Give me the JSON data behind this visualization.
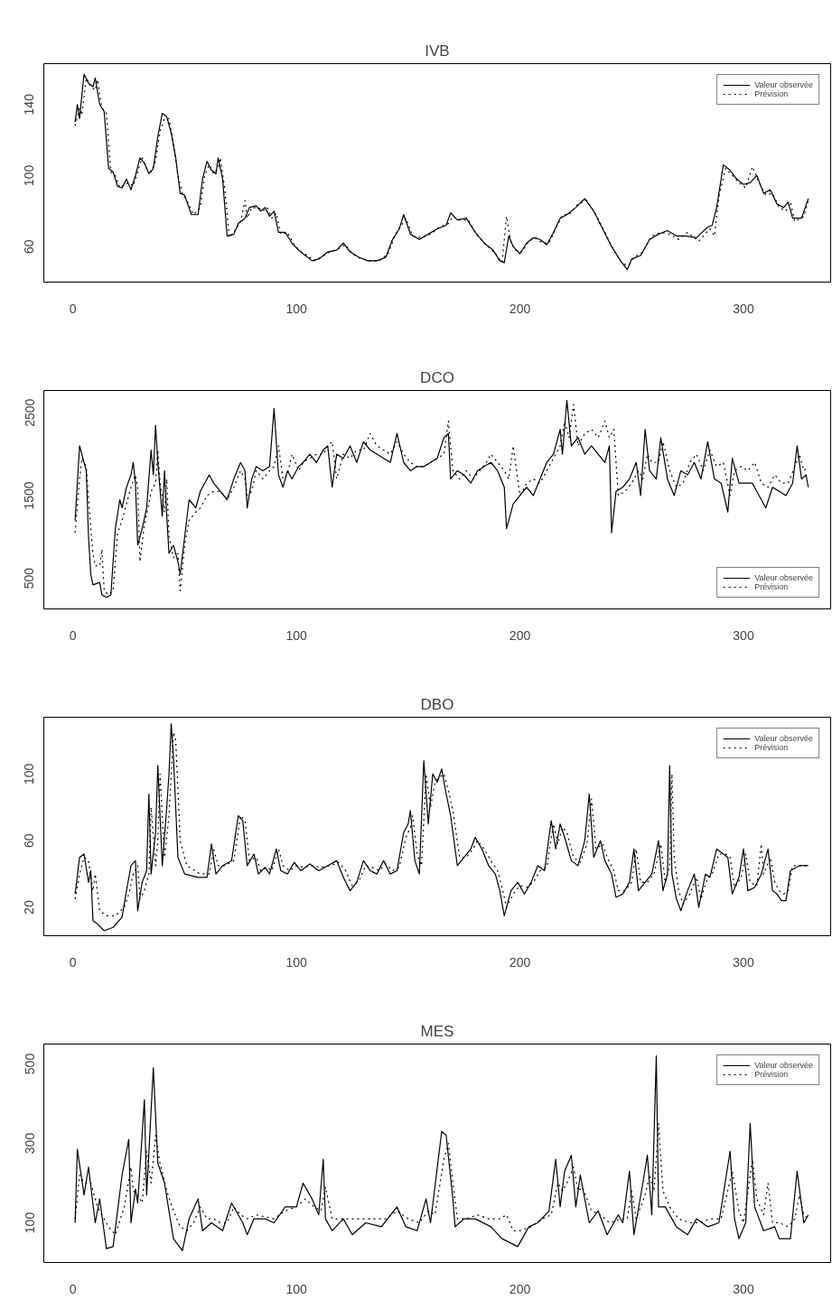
{
  "chart_data": [
    {
      "type": "line",
      "title": "IVB",
      "xlim": [
        -13,
        339
      ],
      "xticks": [
        0,
        100,
        200,
        300
      ],
      "ylim": [
        40,
        163
      ],
      "yticks": [
        60,
        100,
        140
      ],
      "legend": "top right",
      "grid": false,
      "series": [
        {
          "name": "Valeur observée",
          "color": "#000000",
          "line_style": "solid",
          "x": [
            1,
            2,
            3,
            4,
            5,
            7,
            9,
            10,
            12,
            14,
            16,
            18,
            20,
            22,
            24,
            26,
            28,
            30,
            32,
            34,
            36,
            38,
            40,
            42,
            44,
            46,
            48,
            50,
            53,
            56,
            58,
            60,
            62,
            64,
            65,
            67,
            69,
            72,
            74,
            77,
            79,
            82,
            84,
            86,
            88,
            90,
            92,
            95,
            98,
            101,
            104,
            107,
            110,
            114,
            118,
            121,
            124,
            128,
            132,
            136,
            140,
            143,
            146,
            148,
            151,
            155,
            159,
            163,
            167,
            169,
            172,
            176,
            180,
            184,
            188,
            191,
            193,
            195,
            197,
            200,
            203,
            206,
            209,
            212,
            215,
            218,
            221,
            225,
            229,
            233,
            237,
            241,
            245,
            248,
            250,
            254,
            258,
            262,
            266,
            270,
            274,
            279,
            284,
            286,
            288,
            291,
            294,
            297,
            300,
            303,
            306,
            309,
            312,
            315,
            318,
            320,
            322,
            326,
            329
          ],
          "values": [
            130,
            140,
            132,
            145,
            157,
            152,
            150,
            155,
            140,
            136,
            104,
            102,
            94,
            93,
            98,
            92,
            100,
            110,
            107,
            101,
            104,
            122,
            135,
            133,
            124,
            110,
            90,
            89,
            78,
            78,
            98,
            108,
            103,
            101,
            110,
            98,
            66,
            67,
            73,
            76,
            82,
            83,
            80,
            82,
            77,
            80,
            68,
            68,
            62,
            58,
            55,
            52,
            53,
            57,
            58,
            62,
            57,
            54,
            52,
            52,
            54,
            64,
            70,
            78,
            67,
            64,
            67,
            70,
            72,
            79,
            75,
            76,
            68,
            62,
            58,
            52,
            51,
            66,
            60,
            56,
            62,
            65,
            64,
            61,
            68,
            76,
            78,
            82,
            87,
            80,
            70,
            60,
            52,
            47,
            53,
            55,
            64,
            67,
            69,
            66,
            66,
            65,
            71,
            72,
            82,
            106,
            103,
            98,
            95,
            96,
            100,
            90,
            92,
            84,
            82,
            85,
            76,
            76,
            87
          ]
        },
        {
          "name": "Prévision",
          "color": "#000000",
          "line_style": "dotted",
          "x": [
            1,
            3,
            4,
            6,
            8,
            10,
            11,
            13,
            15,
            17,
            19,
            21,
            23,
            25,
            27,
            29,
            31,
            33,
            35,
            37,
            39,
            41,
            43,
            45,
            47,
            49,
            51,
            54,
            57,
            59,
            61,
            63,
            65,
            66,
            68,
            70,
            73,
            75,
            77,
            78,
            80,
            83,
            85,
            87,
            89,
            91,
            93,
            96,
            99,
            102,
            105,
            108,
            111,
            115,
            119,
            122,
            125,
            129,
            133,
            137,
            141,
            144,
            147,
            149,
            152,
            156,
            160,
            164,
            168,
            170,
            173,
            177,
            181,
            185,
            189,
            192,
            194,
            196,
            198,
            201,
            204,
            207,
            210,
            213,
            216,
            219,
            222,
            226,
            230,
            234,
            238,
            242,
            246,
            249,
            251,
            255,
            259,
            263,
            267,
            271,
            275,
            280,
            285,
            287,
            289,
            292,
            295,
            298,
            301,
            304,
            307,
            310,
            313,
            316,
            319,
            321,
            323,
            327,
            329
          ],
          "values": [
            128,
            138,
            134,
            155,
            150,
            148,
            154,
            138,
            135,
            102,
            100,
            93,
            95,
            96,
            94,
            102,
            110,
            104,
            102,
            108,
            125,
            132,
            132,
            118,
            100,
            90,
            86,
            78,
            82,
            100,
            106,
            101,
            104,
            110,
            92,
            65,
            70,
            74,
            86,
            76,
            82,
            82,
            80,
            82,
            76,
            79,
            67,
            68,
            61,
            57,
            55,
            52,
            54,
            57,
            59,
            61,
            56,
            53,
            52,
            52,
            56,
            66,
            72,
            76,
            66,
            65,
            67,
            71,
            73,
            77,
            75,
            75,
            66,
            61,
            56,
            51,
            77,
            62,
            58,
            57,
            63,
            65,
            62,
            62,
            70,
            78,
            78,
            84,
            86,
            78,
            68,
            58,
            50,
            50,
            54,
            57,
            66,
            68,
            67,
            64,
            68,
            63,
            70,
            66,
            88,
            104,
            100,
            96,
            93,
            105,
            96,
            89,
            90,
            82,
            80,
            85,
            74,
            77,
            86
          ]
        }
      ]
    },
    {
      "type": "line",
      "title": "DCO",
      "xlim": [
        -13,
        339
      ],
      "xticks": [
        0,
        100,
        200,
        300
      ],
      "ylim": [
        130,
        2770
      ],
      "yticks": [
        500,
        1500,
        2500
      ],
      "legend": "bottom right",
      "grid": false,
      "series": [
        {
          "name": "Valeur observée",
          "color": "#000000",
          "line_style": "solid",
          "x": [
            1,
            3,
            5,
            6,
            7,
            8,
            9,
            12,
            13,
            15,
            17,
            18,
            19,
            21,
            22,
            24,
            26,
            27,
            28,
            29,
            31,
            33,
            34,
            35,
            36,
            37,
            38,
            40,
            41,
            42,
            43,
            45,
            47,
            48,
            50,
            52,
            55,
            57,
            59,
            61,
            63,
            66,
            69,
            72,
            75,
            77,
            78,
            80,
            82,
            85,
            88,
            90,
            92,
            94,
            96,
            98,
            101,
            103,
            106,
            109,
            112,
            114,
            116,
            118,
            121,
            124,
            127,
            130,
            133,
            136,
            139,
            142,
            145,
            148,
            151,
            154,
            157,
            160,
            163,
            166,
            168,
            169,
            172,
            175,
            178,
            181,
            184,
            187,
            190,
            193,
            194,
            197,
            200,
            203,
            206,
            209,
            212,
            215,
            218,
            219,
            221,
            223,
            226,
            229,
            232,
            235,
            238,
            240,
            241,
            243,
            246,
            249,
            252,
            254,
            256,
            258,
            261,
            263,
            266,
            269,
            272,
            275,
            278,
            281,
            284,
            287,
            290,
            293,
            295,
            298,
            301,
            304,
            307,
            310,
            313,
            316,
            319,
            322,
            324,
            326,
            328,
            329
          ],
          "values": [
            1200,
            2100,
            1900,
            1800,
            1000,
            550,
            420,
            450,
            300,
            270,
            300,
            700,
            1100,
            1450,
            1350,
            1600,
            1750,
            1900,
            1650,
            900,
            1100,
            1350,
            1700,
            2050,
            1750,
            2350,
            1900,
            1250,
            1800,
            1250,
            800,
            900,
            700,
            550,
            1000,
            1450,
            1350,
            1550,
            1650,
            1750,
            1650,
            1550,
            1450,
            1700,
            1900,
            1800,
            1350,
            1700,
            1850,
            1800,
            1850,
            2550,
            1750,
            1600,
            1800,
            1700,
            1850,
            1900,
            2000,
            1900,
            2050,
            2100,
            1600,
            2000,
            1950,
            2100,
            1900,
            2150,
            2050,
            2000,
            1950,
            1900,
            2250,
            1900,
            1800,
            1850,
            1850,
            1900,
            1950,
            2200,
            2250,
            1700,
            1800,
            1750,
            1650,
            1800,
            1850,
            1900,
            1800,
            1600,
            1100,
            1400,
            1500,
            1600,
            1500,
            1700,
            1900,
            2000,
            2300,
            2000,
            2650,
            2100,
            2200,
            2000,
            2100,
            2000,
            1900,
            2100,
            1050,
            1550,
            1600,
            1700,
            1900,
            1500,
            2300,
            1800,
            1700,
            2200,
            1700,
            1500,
            1800,
            1750,
            1900,
            1700,
            2150,
            1700,
            1650,
            1300,
            1950,
            1650,
            1650,
            1650,
            1500,
            1350,
            1600,
            1550,
            1500,
            1650,
            2100,
            1700,
            1750,
            1600
          ]
        },
        {
          "name": "Prévision",
          "color": "#000000",
          "line_style": "dotted",
          "x": [
            1,
            3,
            4,
            6,
            8,
            9,
            10,
            12,
            13,
            14,
            16,
            18,
            20,
            22,
            24,
            26,
            28,
            29,
            30,
            32,
            34,
            35,
            37,
            38,
            39,
            41,
            42,
            43,
            45,
            47,
            48,
            50,
            52,
            55,
            57,
            60,
            63,
            66,
            69,
            72,
            75,
            77,
            78,
            80,
            82,
            85,
            88,
            90,
            92,
            94,
            96,
            98,
            101,
            103,
            106,
            109,
            112,
            114,
            116,
            118,
            121,
            124,
            127,
            130,
            133,
            136,
            139,
            142,
            145,
            148,
            151,
            154,
            157,
            160,
            163,
            166,
            168,
            170,
            173,
            176,
            179,
            182,
            185,
            187,
            190,
            193,
            195,
            197,
            200,
            203,
            206,
            209,
            212,
            215,
            218,
            220,
            222,
            224,
            226,
            229,
            232,
            235,
            238,
            240,
            242,
            244,
            247,
            250,
            253,
            255,
            257,
            259,
            262,
            264,
            267,
            270,
            273,
            276,
            279,
            282,
            285,
            288,
            291,
            294,
            296,
            299,
            302,
            305,
            308,
            311,
            314,
            317,
            320,
            323,
            325,
            327,
            329
          ],
          "values": [
            1050,
            1700,
            1950,
            1850,
            1100,
            800,
            650,
            650,
            850,
            350,
            300,
            350,
            1050,
            1200,
            1400,
            1600,
            1750,
            1600,
            700,
            1150,
            1400,
            1550,
            1650,
            2050,
            1650,
            1300,
            1700,
            1000,
            750,
            800,
            350,
            900,
            1200,
            1300,
            1350,
            1500,
            1550,
            1550,
            1450,
            1600,
            1800,
            1700,
            1500,
            1550,
            1800,
            1700,
            1800,
            1850,
            2100,
            1700,
            1750,
            2000,
            1800,
            1900,
            1950,
            2000,
            2000,
            2100,
            2150,
            1700,
            2000,
            1950,
            2050,
            2050,
            2250,
            2100,
            2050,
            2000,
            2150,
            2000,
            1900,
            1850,
            1850,
            1900,
            1950,
            2000,
            2400,
            1800,
            1700,
            1800,
            1700,
            1800,
            1900,
            2000,
            1900,
            1800,
            1700,
            2100,
            1500,
            1650,
            1700,
            1650,
            1800,
            1950,
            2100,
            2400,
            2200,
            2600,
            2100,
            2250,
            2300,
            2200,
            2400,
            2200,
            2300,
            1500,
            1550,
            1650,
            1800,
            1700,
            2000,
            1900,
            1900,
            2150,
            1800,
            1600,
            1650,
            1900,
            2000,
            1800,
            2050,
            1850,
            1900,
            1500,
            1800,
            1850,
            1800,
            1900,
            1650,
            1600,
            1750,
            1650,
            1650,
            1850,
            2000,
            1800,
            1850
          ]
        }
      ]
    },
    {
      "type": "line",
      "title": "DBO",
      "xlim": [
        -13,
        339
      ],
      "xticks": [
        0,
        100,
        200,
        300
      ],
      "ylim": [
        3,
        134
      ],
      "yticks": [
        20,
        60,
        100
      ],
      "legend": "top right",
      "grid": false,
      "series": [
        {
          "name": "Valeur observée",
          "color": "#000000",
          "line_style": "solid",
          "x": [
            1,
            3,
            5,
            7,
            8,
            9,
            11,
            14,
            18,
            22,
            24,
            26,
            28,
            29,
            31,
            33,
            34,
            35,
            37,
            38,
            40,
            42,
            43,
            44,
            45,
            47,
            50,
            56,
            60,
            62,
            64,
            67,
            71,
            74,
            76,
            78,
            81,
            83,
            86,
            88,
            91,
            93,
            96,
            99,
            102,
            106,
            110,
            114,
            118,
            121,
            124,
            127,
            130,
            133,
            136,
            139,
            142,
            145,
            148,
            150,
            151,
            153,
            155,
            157,
            159,
            161,
            163,
            165,
            167,
            169,
            172,
            175,
            178,
            180,
            183,
            186,
            189,
            191,
            193,
            196,
            199,
            202,
            205,
            208,
            211,
            214,
            216,
            218,
            220,
            223,
            226,
            229,
            231,
            233,
            236,
            238,
            241,
            243,
            246,
            249,
            251,
            253,
            256,
            259,
            262,
            264,
            266,
            267,
            268,
            270,
            272,
            275,
            278,
            280,
            283,
            285,
            288,
            291,
            293,
            295,
            298,
            300,
            302,
            305,
            308,
            311,
            313,
            315,
            317,
            319,
            321,
            325,
            329
          ],
          "values": [
            28,
            50,
            52,
            35,
            42,
            12,
            10,
            6,
            8,
            14,
            30,
            45,
            48,
            18,
            35,
            42,
            88,
            40,
            65,
            105,
            45,
            80,
            100,
            130,
            110,
            50,
            40,
            38,
            38,
            58,
            40,
            45,
            48,
            75,
            72,
            45,
            52,
            40,
            44,
            40,
            55,
            42,
            40,
            47,
            42,
            46,
            42,
            45,
            48,
            38,
            30,
            35,
            48,
            42,
            40,
            48,
            40,
            42,
            65,
            70,
            78,
            48,
            40,
            108,
            70,
            100,
            95,
            103,
            88,
            75,
            45,
            50,
            55,
            62,
            55,
            45,
            40,
            30,
            15,
            30,
            35,
            28,
            35,
            45,
            42,
            72,
            55,
            70,
            62,
            48,
            45,
            60,
            88,
            50,
            60,
            48,
            40,
            26,
            28,
            35,
            55,
            30,
            35,
            40,
            60,
            30,
            40,
            105,
            40,
            25,
            18,
            30,
            40,
            20,
            40,
            38,
            55,
            52,
            50,
            28,
            38,
            55,
            30,
            32,
            40,
            55,
            30,
            28,
            24,
            24,
            42,
            45,
            45
          ]
        },
        {
          "name": "Prévision",
          "color": "#000000",
          "line_style": "dotted",
          "x": [
            1,
            3,
            5,
            7,
            9,
            10,
            12,
            15,
            19,
            23,
            25,
            27,
            29,
            30,
            32,
            34,
            35,
            37,
            38,
            39,
            41,
            43,
            45,
            46,
            48,
            51,
            57,
            61,
            63,
            65,
            68,
            72,
            75,
            77,
            79,
            82,
            84,
            87,
            89,
            92,
            94,
            97,
            100,
            103,
            107,
            111,
            115,
            119,
            122,
            125,
            128,
            131,
            134,
            137,
            140,
            143,
            146,
            149,
            151,
            152,
            154,
            156,
            158,
            160,
            162,
            164,
            166,
            168,
            170,
            173,
            176,
            179,
            181,
            184,
            187,
            190,
            192,
            194,
            197,
            200,
            203,
            206,
            209,
            212,
            215,
            217,
            219,
            221,
            224,
            227,
            230,
            232,
            234,
            237,
            239,
            242,
            244,
            247,
            250,
            252,
            254,
            257,
            260,
            263,
            265,
            267,
            268,
            269,
            271,
            273,
            276,
            279,
            281,
            284,
            286,
            289,
            292,
            294,
            296,
            299,
            301,
            303,
            306,
            308,
            309,
            312,
            314,
            316,
            318,
            320,
            322,
            325,
            329
          ],
          "values": [
            25,
            40,
            50,
            48,
            30,
            40,
            18,
            15,
            15,
            20,
            28,
            40,
            45,
            25,
            30,
            40,
            80,
            45,
            60,
            100,
            50,
            75,
            125,
            120,
            60,
            45,
            40,
            40,
            55,
            45,
            45,
            48,
            75,
            72,
            48,
            50,
            42,
            44,
            42,
            55,
            45,
            42,
            45,
            44,
            45,
            44,
            45,
            47,
            42,
            33,
            36,
            45,
            44,
            42,
            46,
            42,
            44,
            62,
            68,
            75,
            52,
            45,
            100,
            80,
            95,
            98,
            100,
            90,
            78,
            50,
            50,
            55,
            60,
            55,
            48,
            42,
            32,
            20,
            28,
            33,
            32,
            35,
            42,
            44,
            70,
            58,
            68,
            65,
            50,
            47,
            58,
            85,
            55,
            58,
            50,
            42,
            30,
            30,
            35,
            55,
            35,
            35,
            40,
            58,
            35,
            45,
            100,
            50,
            30,
            22,
            28,
            38,
            25,
            38,
            40,
            52,
            52,
            50,
            32,
            38,
            52,
            35,
            33,
            58,
            40,
            50,
            35,
            30,
            28,
            30,
            45,
            45,
            45
          ]
        }
      ]
    },
    {
      "type": "line",
      "title": "MES",
      "xlim": [
        -13,
        339
      ],
      "xticks": [
        0,
        100,
        200,
        300
      ],
      "ylim": [
        0,
        550
      ],
      "yticks": [
        100,
        300,
        500
      ],
      "legend": "top right",
      "grid": false,
      "series": [
        {
          "name": "Valeur observée",
          "color": "#000000",
          "line_style": "solid",
          "x": [
            1,
            2,
            5,
            7,
            10,
            12,
            15,
            18,
            22,
            25,
            26,
            28,
            29,
            32,
            33,
            36,
            38,
            41,
            43,
            45,
            49,
            52,
            56,
            58,
            62,
            67,
            71,
            76,
            78,
            81,
            86,
            90,
            95,
            100,
            103,
            107,
            110,
            112,
            113,
            116,
            121,
            125,
            131,
            138,
            145,
            149,
            154,
            158,
            160,
            165,
            167,
            170,
            171,
            175,
            180,
            187,
            192,
            199,
            204,
            208,
            213,
            216,
            218,
            220,
            223,
            225,
            227,
            231,
            235,
            239,
            244,
            246,
            249,
            251,
            255,
            257,
            259,
            261,
            262,
            265,
            270,
            275,
            279,
            284,
            289,
            294,
            296,
            298,
            301,
            303,
            305,
            309,
            314,
            316,
            321,
            324,
            327,
            329
          ],
          "values": [
            100,
            285,
            170,
            240,
            100,
            160,
            35,
            40,
            220,
            310,
            100,
            185,
            150,
            410,
            170,
            490,
            250,
            200,
            130,
            60,
            30,
            110,
            160,
            80,
            100,
            80,
            150,
            100,
            70,
            110,
            110,
            100,
            140,
            140,
            200,
            160,
            120,
            260,
            110,
            80,
            110,
            70,
            100,
            90,
            140,
            90,
            80,
            160,
            100,
            330,
            320,
            160,
            90,
            110,
            110,
            90,
            60,
            40,
            90,
            100,
            130,
            260,
            140,
            230,
            270,
            140,
            220,
            100,
            130,
            70,
            120,
            100,
            230,
            70,
            200,
            270,
            120,
            520,
            140,
            140,
            90,
            70,
            110,
            90,
            100,
            280,
            110,
            60,
            100,
            350,
            140,
            80,
            90,
            60,
            60,
            230,
            100,
            120
          ]
        },
        {
          "name": "Prévision",
          "color": "#000000",
          "line_style": "dotted",
          "x": [
            1,
            3,
            5,
            8,
            11,
            13,
            16,
            19,
            23,
            26,
            27,
            29,
            31,
            33,
            35,
            37,
            39,
            42,
            45,
            48,
            51,
            54,
            57,
            60,
            63,
            66,
            69,
            72,
            75,
            78,
            82,
            86,
            90,
            95,
            100,
            104,
            108,
            111,
            113,
            116,
            120,
            125,
            130,
            135,
            140,
            145,
            150,
            155,
            159,
            162,
            166,
            168,
            170,
            172,
            176,
            181,
            186,
            191,
            194,
            197,
            200,
            205,
            210,
            214,
            217,
            219,
            221,
            224,
            226,
            228,
            232,
            236,
            240,
            245,
            248,
            250,
            252,
            256,
            258,
            260,
            262,
            264,
            267,
            271,
            276,
            280,
            285,
            290,
            295,
            298,
            300,
            304,
            306,
            309,
            311,
            313,
            316,
            320,
            323,
            325,
            327,
            329
          ],
          "values": [
            110,
            220,
            200,
            200,
            140,
            120,
            90,
            70,
            140,
            240,
            180,
            170,
            150,
            280,
            200,
            320,
            250,
            180,
            130,
            90,
            80,
            100,
            140,
            110,
            110,
            100,
            100,
            140,
            120,
            110,
            120,
            115,
            110,
            130,
            140,
            160,
            140,
            130,
            190,
            110,
            110,
            110,
            110,
            110,
            110,
            130,
            110,
            100,
            130,
            120,
            260,
            300,
            200,
            110,
            110,
            120,
            110,
            110,
            120,
            80,
            80,
            90,
            110,
            120,
            200,
            180,
            200,
            240,
            180,
            190,
            130,
            120,
            100,
            110,
            110,
            180,
            110,
            170,
            220,
            180,
            350,
            180,
            140,
            110,
            100,
            100,
            110,
            110,
            230,
            130,
            100,
            260,
            160,
            120,
            200,
            100,
            100,
            90,
            110,
            170,
            120,
            110
          ]
        }
      ]
    }
  ]
}
